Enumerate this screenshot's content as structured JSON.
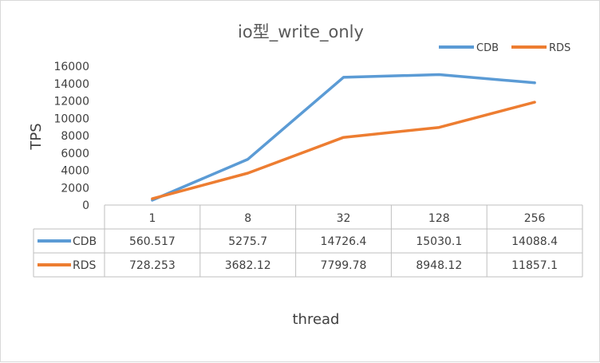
{
  "chart_data": {
    "type": "line",
    "title": "io型_write_only",
    "xlabel": "thread",
    "ylabel": "TPS",
    "ylim": [
      0,
      16000
    ],
    "yticks": [
      0,
      2000,
      4000,
      6000,
      8000,
      10000,
      12000,
      14000,
      16000
    ],
    "grid": false,
    "legend_position": "top-right",
    "categories": [
      "1",
      "8",
      "32",
      "128",
      "256"
    ],
    "series": [
      {
        "name": "CDB",
        "color": "#5B9BD5",
        "values": [
          560.517,
          5275.7,
          14726.4,
          15030.1,
          14088.4
        ],
        "labels": [
          "560.517",
          "5275.7",
          "14726.4",
          "15030.1",
          "14088.4"
        ]
      },
      {
        "name": "RDS",
        "color": "#ED7D31",
        "values": [
          728.253,
          3682.12,
          7799.78,
          8948.12,
          11857.1
        ],
        "labels": [
          "728.253",
          "3682.12",
          "7799.78",
          "8948.12",
          "11857.1"
        ]
      }
    ],
    "data_table": true
  }
}
